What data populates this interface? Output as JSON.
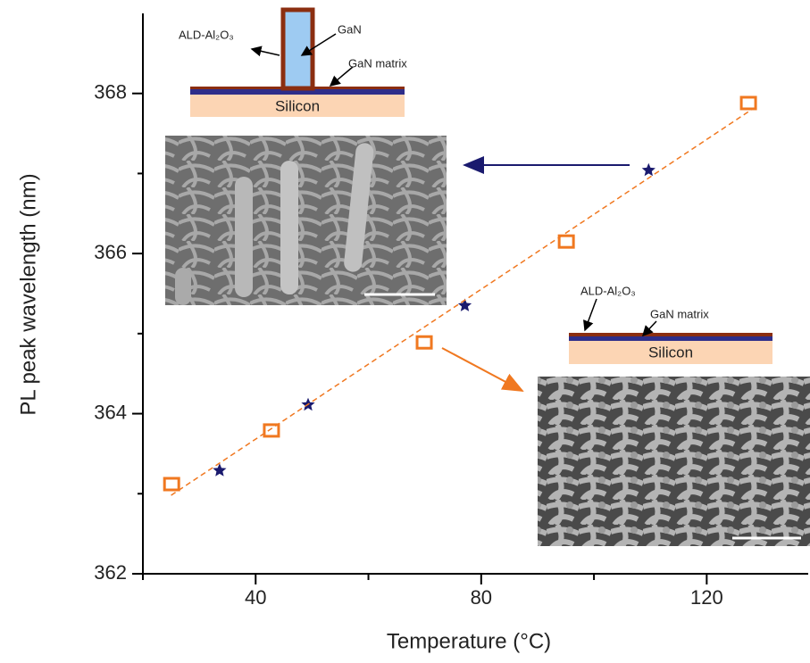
{
  "chart_data": {
    "type": "scatter",
    "xlabel": "Temperature (°C)",
    "ylabel": "PL peak wavelength (nm)",
    "xlim": [
      20,
      138
    ],
    "xticks": [
      40,
      80,
      120
    ],
    "xminorticks": [
      20,
      60,
      100
    ],
    "ylim": [
      362,
      369
    ],
    "yticks": [
      362,
      364,
      366,
      368
    ],
    "yminorticks": [
      363,
      365,
      367
    ],
    "series": [
      {
        "marker": "square",
        "color": "#f07820",
        "x": [
          25.1,
          42.8,
          69.9,
          95.1,
          127.4
        ],
        "values": [
          363.12,
          363.79,
          364.89,
          366.15,
          367.88
        ]
      },
      {
        "marker": "star",
        "color": "#1a1a6e",
        "x": [
          33.6,
          49.3,
          77.1,
          109.7
        ],
        "values": [
          363.29,
          364.11,
          365.35,
          367.04
        ]
      },
      {
        "marker": "dashed-line",
        "color": "#f07820",
        "x": [
          25,
          128
        ],
        "values": [
          362.98,
          367.8
        ]
      }
    ],
    "annotations": [
      "ALD-Al₂O₃",
      "GaN",
      "GaN matrix",
      "Silicon",
      "ALD-Al₂O₃",
      "GaN matrix",
      "Silicon"
    ]
  }
}
